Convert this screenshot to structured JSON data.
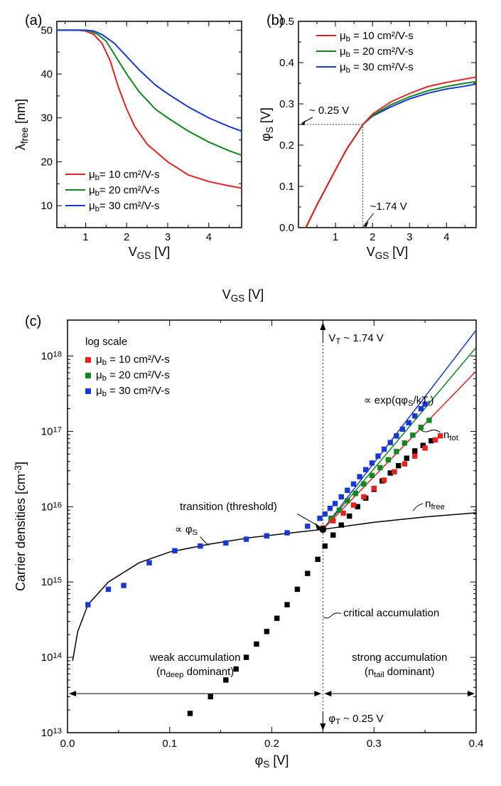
{
  "colors": {
    "red": "#e6231e",
    "green": "#0d8a1e",
    "blue": "#1738d6",
    "black": "#000000",
    "gray": "#666666",
    "bg": "#ffffff"
  },
  "panel_a": {
    "label": "(a)",
    "xlabel": "V_GS [V]",
    "ylabel": "λ_free [nm]",
    "xlim": [
      0.3,
      4.8
    ],
    "ylim": [
      5,
      52
    ],
    "xticks": [
      1,
      2,
      3,
      4
    ],
    "yticks": [
      10,
      20,
      30,
      40,
      50
    ],
    "xtick_minor": [
      0.5,
      1.5,
      2.5,
      3.5,
      4.5
    ],
    "ytick_minor": [
      15,
      25,
      35,
      45
    ],
    "legend": [
      {
        "color": "red",
        "label": "μ_b= 10 cm²/V-s"
      },
      {
        "color": "green",
        "label": "μ_b= 20 cm²/V-s"
      },
      {
        "color": "blue",
        "label": "μ_b= 30 cm²/V-s"
      }
    ],
    "series": {
      "red": [
        [
          0.3,
          50
        ],
        [
          0.8,
          50
        ],
        [
          1.0,
          49.8
        ],
        [
          1.2,
          49
        ],
        [
          1.4,
          47
        ],
        [
          1.6,
          43
        ],
        [
          1.8,
          37
        ],
        [
          2.0,
          32
        ],
        [
          2.2,
          28
        ],
        [
          2.5,
          24
        ],
        [
          3.0,
          20
        ],
        [
          3.5,
          17
        ],
        [
          4.0,
          15.5
        ],
        [
          4.5,
          14.5
        ],
        [
          4.8,
          14
        ]
      ],
      "green": [
        [
          0.3,
          50
        ],
        [
          0.9,
          50
        ],
        [
          1.1,
          49.8
        ],
        [
          1.3,
          49
        ],
        [
          1.5,
          47.5
        ],
        [
          1.8,
          43
        ],
        [
          2.0,
          40
        ],
        [
          2.3,
          36
        ],
        [
          2.7,
          32
        ],
        [
          3.0,
          30
        ],
        [
          3.5,
          27
        ],
        [
          4.0,
          24.5
        ],
        [
          4.5,
          22.5
        ],
        [
          4.8,
          21.5
        ]
      ],
      "blue": [
        [
          0.3,
          50
        ],
        [
          1.0,
          50
        ],
        [
          1.2,
          49.8
        ],
        [
          1.4,
          49
        ],
        [
          1.7,
          47
        ],
        [
          2.0,
          44
        ],
        [
          2.3,
          41
        ],
        [
          2.7,
          37.5
        ],
        [
          3.0,
          35.5
        ],
        [
          3.5,
          32.5
        ],
        [
          4.0,
          30
        ],
        [
          4.5,
          28
        ],
        [
          4.8,
          27
        ]
      ]
    }
  },
  "panel_b": {
    "label": "(b)",
    "xlabel": "V_GS [V]",
    "ylabel": "φ_S [V]",
    "xlim": [
      0.0,
      4.8
    ],
    "ylim": [
      0.0,
      0.5
    ],
    "xticks": [
      1,
      2,
      3,
      4
    ],
    "yticks": [
      0.0,
      0.1,
      0.2,
      0.3,
      0.4,
      0.5
    ],
    "xtick_minor": [
      0.5,
      1.5,
      2.5,
      3.5,
      4.5
    ],
    "ytick_minor": [
      0.05,
      0.15,
      0.25,
      0.35,
      0.45
    ],
    "legend": [
      {
        "color": "red",
        "label": "μ_b = 10 cm²/V-s"
      },
      {
        "color": "green",
        "label": "μ_b = 20 cm²/V-s"
      },
      {
        "color": "blue",
        "label": "μ_b = 30 cm²/V-s"
      }
    ],
    "annotations": {
      "y_marker": "~ 0.25 V",
      "x_marker": "~1.74 V",
      "marker_x": 1.74,
      "marker_y": 0.25
    },
    "series": {
      "red": [
        [
          0.2,
          0.0
        ],
        [
          0.5,
          0.055
        ],
        [
          1.0,
          0.14
        ],
        [
          1.3,
          0.19
        ],
        [
          1.6,
          0.23
        ],
        [
          1.74,
          0.25
        ],
        [
          2.0,
          0.275
        ],
        [
          2.5,
          0.305
        ],
        [
          3.0,
          0.325
        ],
        [
          3.5,
          0.342
        ],
        [
          4.0,
          0.352
        ],
        [
          4.5,
          0.36
        ],
        [
          4.8,
          0.365
        ]
      ],
      "green": [
        [
          0.2,
          0.0
        ],
        [
          0.5,
          0.055
        ],
        [
          1.0,
          0.14
        ],
        [
          1.3,
          0.19
        ],
        [
          1.6,
          0.23
        ],
        [
          1.74,
          0.25
        ],
        [
          2.0,
          0.272
        ],
        [
          2.5,
          0.298
        ],
        [
          3.0,
          0.317
        ],
        [
          3.5,
          0.332
        ],
        [
          4.0,
          0.342
        ],
        [
          4.5,
          0.35
        ],
        [
          4.8,
          0.354
        ]
      ],
      "blue": [
        [
          0.2,
          0.0
        ],
        [
          0.5,
          0.055
        ],
        [
          1.0,
          0.14
        ],
        [
          1.3,
          0.19
        ],
        [
          1.6,
          0.23
        ],
        [
          1.74,
          0.25
        ],
        [
          2.0,
          0.27
        ],
        [
          2.5,
          0.293
        ],
        [
          3.0,
          0.312
        ],
        [
          3.5,
          0.326
        ],
        [
          4.0,
          0.336
        ],
        [
          4.5,
          0.343
        ],
        [
          4.8,
          0.348
        ]
      ]
    }
  },
  "mid_label": "V_GS [V]",
  "panel_c": {
    "label": "(c)",
    "xlabel": "φ_S [V]",
    "ylabel": "Carrier densities [cm⁻³]",
    "xlim": [
      0.0,
      0.4
    ],
    "ylim": [
      10000000000000.0,
      3e+18
    ],
    "xticks": [
      0.0,
      0.1,
      0.2,
      0.3,
      0.4
    ],
    "xtick_minor": [
      0.05,
      0.15,
      0.25,
      0.35
    ],
    "yticks": [
      10000000000000.0,
      100000000000000.0,
      1000000000000000.0,
      1e+16,
      1e+17,
      1e+18
    ],
    "ytick_labels": [
      "10^13",
      "10^14",
      "10^15",
      "10^16",
      "10^17",
      "10^18"
    ],
    "legend_title": "log scale",
    "legend": [
      {
        "color": "red",
        "label": "μ_b = 10 cm²/V-s"
      },
      {
        "color": "green",
        "label": "μ_b = 20 cm²/V-s"
      },
      {
        "color": "blue",
        "label": "μ_b = 30 cm²/V-s"
      }
    ],
    "annotations": {
      "vt": "V_T ~ 1.74 V",
      "exp": "∝ exp(qφ_S/kT_t)",
      "ntot": "n_tot",
      "nfree": "n_free",
      "transition": "transition (threshold)",
      "prop_phi": "∝ φ_S",
      "critical": "critical accumulation",
      "weak1": "weak accumulation",
      "weak2": "(n_deep dominant)",
      "strong1": "strong  accumulation",
      "strong2": "(n_tail dominant)",
      "phit": "φ_T ~ 0.25 V",
      "vline_x": 0.25,
      "transition_point": [
        0.25,
        5000000000000000.0
      ]
    },
    "curve_phi": [
      [
        0.005,
        90000000000000.0
      ],
      [
        0.01,
        220000000000000.0
      ],
      [
        0.02,
        500000000000000.0
      ],
      [
        0.04,
        1000000000000000.0
      ],
      [
        0.07,
        1800000000000000.0
      ],
      [
        0.1,
        2500000000000000.0
      ],
      [
        0.14,
        3200000000000000.0
      ],
      [
        0.18,
        3900000000000000.0
      ],
      [
        0.22,
        4500000000000000.0
      ],
      [
        0.25,
        5000000000000000.0
      ],
      [
        0.3,
        6200000000000000.0
      ],
      [
        0.35,
        7300000000000000.0
      ],
      [
        0.4,
        8300000000000000.0
      ]
    ],
    "nfree_points": [
      [
        0.12,
        18000000000000.0
      ],
      [
        0.14,
        30000000000000.0
      ],
      [
        0.155,
        50000000000000.0
      ],
      [
        0.165,
        70000000000000.0
      ],
      [
        0.175,
        100000000000000.0
      ],
      [
        0.185,
        150000000000000.0
      ],
      [
        0.195,
        220000000000000.0
      ],
      [
        0.205,
        330000000000000.0
      ],
      [
        0.215,
        500000000000000.0
      ],
      [
        0.225,
        800000000000000.0
      ],
      [
        0.235,
        1300000000000000.0
      ],
      [
        0.245,
        2000000000000000.0
      ],
      [
        0.252,
        3000000000000000.0
      ],
      [
        0.26,
        4200000000000000.0
      ],
      [
        0.268,
        5700000000000000.0
      ],
      [
        0.276,
        7500000000000000.0
      ],
      [
        0.284,
        1e+16
      ],
      [
        0.292,
        1.3e+16
      ],
      [
        0.3,
        1.7e+16
      ],
      [
        0.308,
        2.2e+16
      ],
      [
        0.316,
        2.8e+16
      ],
      [
        0.324,
        3.5e+16
      ],
      [
        0.332,
        4.4e+16
      ],
      [
        0.34,
        5.5e+16
      ],
      [
        0.348,
        6.5e+16
      ],
      [
        0.356,
        7.5e+16
      ]
    ],
    "ntot": {
      "blue_pts": [
        [
          0.02,
          500000000000000.0
        ],
        [
          0.04,
          800000000000000.0
        ],
        [
          0.055,
          900000000000000.0
        ],
        [
          0.08,
          1800000000000000.0
        ],
        [
          0.105,
          2600000000000000.0
        ],
        [
          0.13,
          3000000000000000.0
        ],
        [
          0.155,
          3300000000000000.0
        ],
        [
          0.175,
          3700000000000000.0
        ],
        [
          0.195,
          4100000000000000.0
        ],
        [
          0.215,
          4500000000000000.0
        ],
        [
          0.235,
          5500000000000000.0
        ],
        [
          0.247,
          7000000000000000.0
        ],
        [
          0.252,
          8000000000000000.0
        ],
        [
          0.257,
          9500000000000000.0
        ],
        [
          0.262,
          1.1e+16
        ],
        [
          0.268,
          1.35e+16
        ],
        [
          0.274,
          1.65e+16
        ],
        [
          0.28,
          2e+16
        ],
        [
          0.286,
          2.5e+16
        ],
        [
          0.292,
          3.1e+16
        ],
        [
          0.298,
          3.8e+16
        ],
        [
          0.304,
          4.7e+16
        ],
        [
          0.31,
          5.8e+16
        ],
        [
          0.316,
          7.1e+16
        ],
        [
          0.322,
          8.7e+16
        ],
        [
          0.328,
          1.07e+17
        ],
        [
          0.334,
          1.3e+17
        ],
        [
          0.34,
          1.6e+17
        ],
        [
          0.346,
          2e+17
        ],
        [
          0.35,
          2.3e+17
        ]
      ],
      "green_pts": [
        [
          0.25,
          5200000000000000.0
        ],
        [
          0.258,
          7000000000000000.0
        ],
        [
          0.266,
          9000000000000000.0
        ],
        [
          0.274,
          1.2e+16
        ],
        [
          0.282,
          1.5e+16
        ],
        [
          0.29,
          2e+16
        ],
        [
          0.298,
          2.6e+16
        ],
        [
          0.306,
          3.3e+16
        ],
        [
          0.314,
          4.2e+16
        ],
        [
          0.322,
          5.4e+16
        ],
        [
          0.33,
          7e+16
        ],
        [
          0.338,
          8.9e+16
        ],
        [
          0.346,
          1.13e+17
        ],
        [
          0.354,
          1.4e+17
        ]
      ],
      "red_pts": [
        [
          0.25,
          5200000000000000.0
        ],
        [
          0.26,
          6500000000000000.0
        ],
        [
          0.27,
          8200000000000000.0
        ],
        [
          0.28,
          1.05e+16
        ],
        [
          0.29,
          1.35e+16
        ],
        [
          0.3,
          1.75e+16
        ],
        [
          0.31,
          2.25e+16
        ],
        [
          0.32,
          2.9e+16
        ],
        [
          0.33,
          3.7e+16
        ],
        [
          0.34,
          4.7e+16
        ],
        [
          0.35,
          6e+16
        ],
        [
          0.36,
          7.7e+16
        ],
        [
          0.365,
          8.7e+16
        ]
      ]
    },
    "ntot_lines": {
      "blue": [
        [
          0.25,
          5000000000000000.0
        ],
        [
          0.4,
          2.2e+18
        ]
      ],
      "green": [
        [
          0.25,
          5000000000000000.0
        ],
        [
          0.4,
          1.3e+18
        ]
      ],
      "red": [
        [
          0.25,
          5000000000000000.0
        ],
        [
          0.4,
          6.3e+17
        ]
      ]
    }
  }
}
